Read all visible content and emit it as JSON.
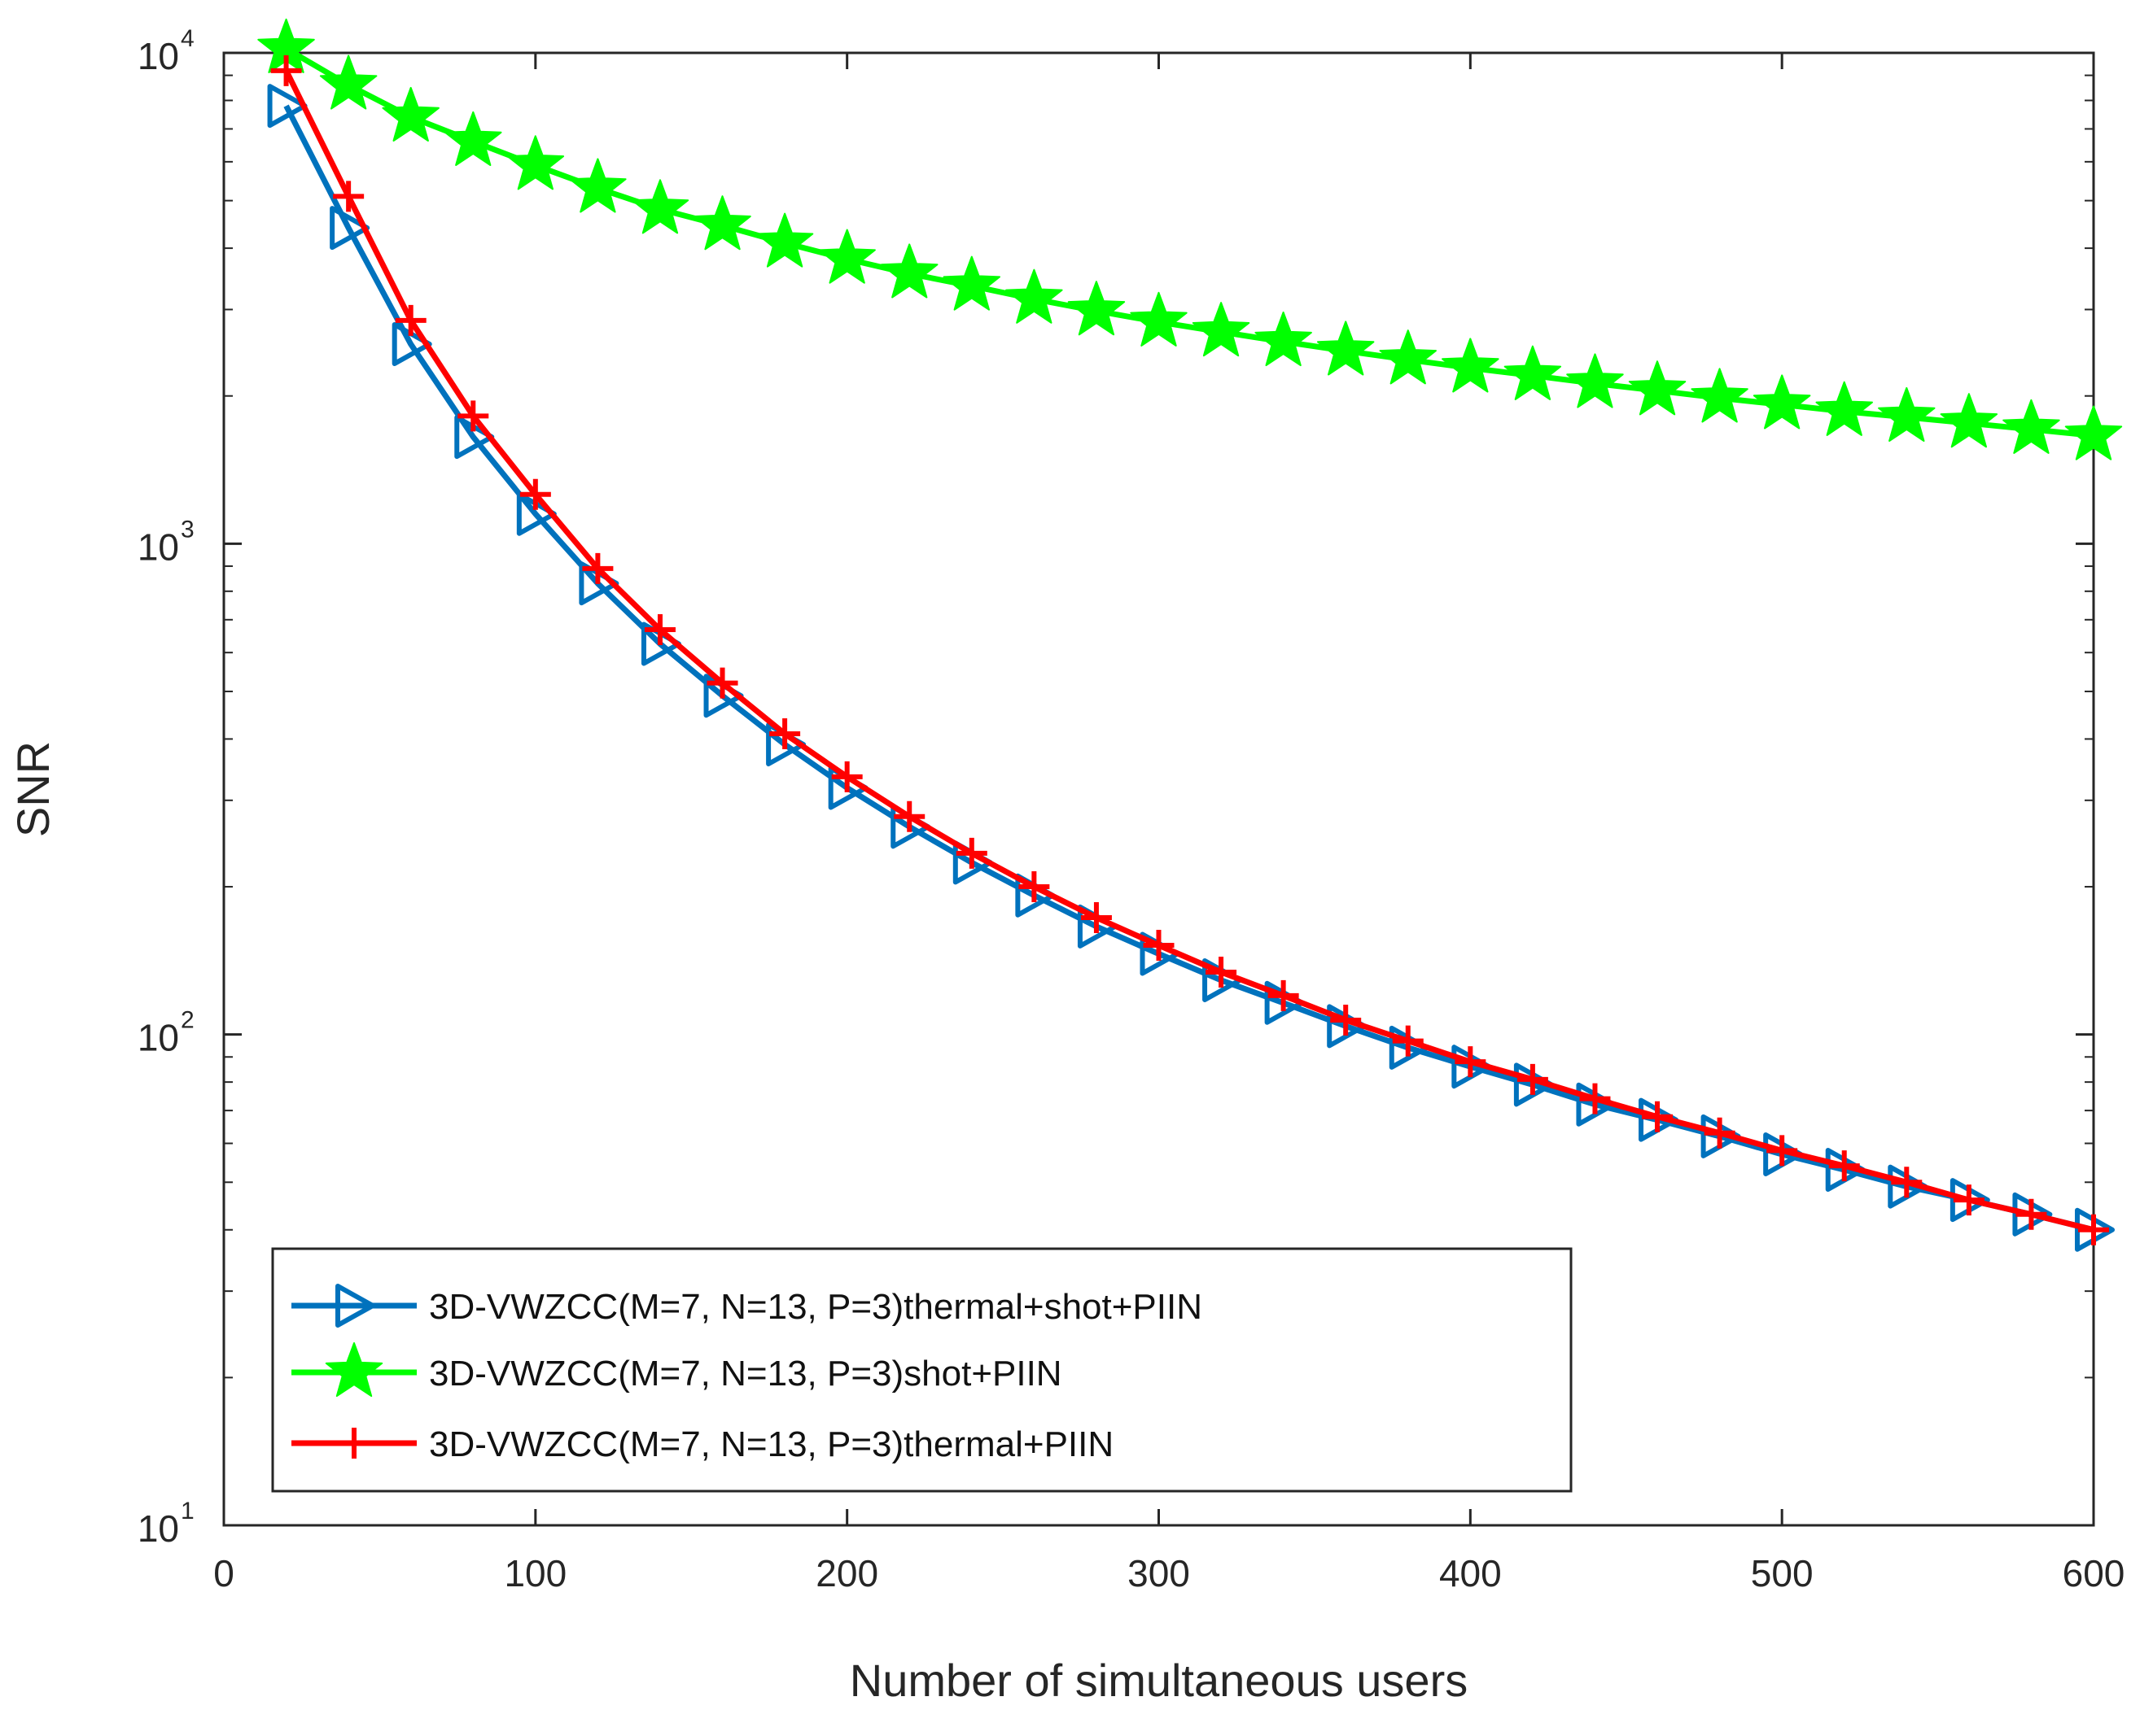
{
  "chart_data": {
    "type": "line",
    "title": "",
    "xlabel": "Number of simultaneous users",
    "ylabel": "SNR",
    "xlim": [
      0,
      600
    ],
    "ylim": [
      10,
      10000
    ],
    "yscale": "log",
    "grid": false,
    "legend_position": "bottom-left",
    "x_ticks": [
      "0",
      "100",
      "200",
      "300",
      "400",
      "500",
      "600"
    ],
    "y_ticks": [
      {
        "base": "10",
        "exp": "1"
      },
      {
        "base": "10",
        "exp": "2"
      },
      {
        "base": "10",
        "exp": "3"
      },
      {
        "base": "10",
        "exp": "4"
      }
    ],
    "x": [
      20,
      40,
      60,
      80,
      100,
      120,
      140,
      160,
      180,
      200,
      220,
      240,
      260,
      280,
      300,
      320,
      340,
      360,
      380,
      400,
      420,
      440,
      460,
      480,
      500,
      520,
      540,
      560,
      580,
      600
    ],
    "series": [
      {
        "name": "3D-VWZCC(M=7, N=13, P=3)thermal+shot+PIIN",
        "color": "#0072bd",
        "marker": "triangle-right",
        "values": [
          7800,
          4400,
          2550,
          1650,
          1150,
          830,
          625,
          490,
          390,
          318,
          265,
          224,
          192,
          166,
          146,
          129,
          116,
          104,
          94,
          86,
          79,
          72,
          67,
          62,
          57,
          53,
          49,
          46,
          43,
          40
        ]
      },
      {
        "name": "3D-VWZCC(M=7, N=13, P=3)shot+PIIN",
        "color": "#00ff00",
        "marker": "star",
        "values": [
          10200,
          8600,
          7400,
          6600,
          5900,
          5300,
          4800,
          4450,
          4100,
          3800,
          3550,
          3350,
          3150,
          2980,
          2830,
          2700,
          2580,
          2470,
          2370,
          2280,
          2200,
          2120,
          2050,
          1980,
          1920,
          1860,
          1810,
          1760,
          1710,
          1660
        ]
      },
      {
        "name": "3D-VWZCC(M=7, N=13, P=3)thermal+PIIN",
        "color": "#ff0000",
        "marker": "plus",
        "values": [
          9200,
          5100,
          2850,
          1820,
          1260,
          890,
          668,
          520,
          410,
          335,
          278,
          234,
          200,
          173,
          152,
          134,
          120,
          107,
          97,
          88,
          81,
          74,
          68,
          63,
          58,
          54,
          50,
          46,
          43,
          40
        ]
      }
    ]
  }
}
